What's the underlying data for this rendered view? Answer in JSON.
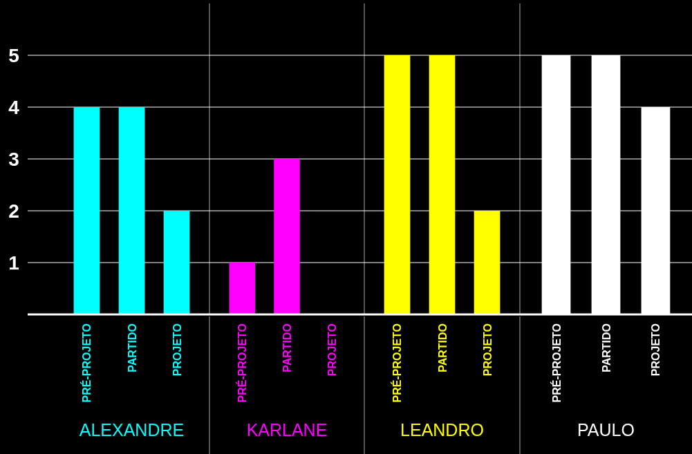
{
  "chart_data": [
    {
      "type": "bar",
      "xlabel": "ALEXANDRE",
      "categories": [
        "PRÉ-PROJETO",
        "PARTIDO",
        "PROJETO"
      ],
      "values": [
        4,
        4,
        2
      ],
      "color": "#00ffff",
      "ylim": [
        0,
        6
      ],
      "yticks": [
        1,
        2,
        3,
        4,
        5
      ],
      "grid": "y"
    },
    {
      "type": "bar",
      "xlabel": "KARLANE",
      "categories": [
        "PRÉ-PROJETO",
        "PARTIDO",
        "PROJETO"
      ],
      "values": [
        1,
        3,
        0
      ],
      "color": "#ff00ff",
      "ylim": [
        0,
        6
      ],
      "yticks": [
        1,
        2,
        3,
        4,
        5
      ],
      "grid": "y",
      "tick_labels": "x"
    },
    {
      "type": "bar",
      "xlabel": "LEANDRO",
      "categories": [
        "PRÉ-PROJETO",
        "PARTIDO",
        "PROJETO"
      ],
      "values": [
        5,
        5,
        2
      ],
      "color": "#ffff00",
      "ylim": [
        0,
        6
      ],
      "yticks": [
        1,
        2,
        3,
        4,
        5
      ],
      "grid": "y",
      "tick_labels": "x"
    },
    {
      "type": "bar",
      "xlabel": "PAULO",
      "categories": [
        "PRÉ-PROJETO",
        "PARTIDO",
        "PROJETO"
      ],
      "values": [
        5,
        5,
        4
      ],
      "color": "#ffffff",
      "ylim": [
        0,
        6
      ],
      "yticks": [
        1,
        2,
        3,
        4,
        5
      ],
      "grid": "y",
      "tick_labels": "x"
    }
  ]
}
